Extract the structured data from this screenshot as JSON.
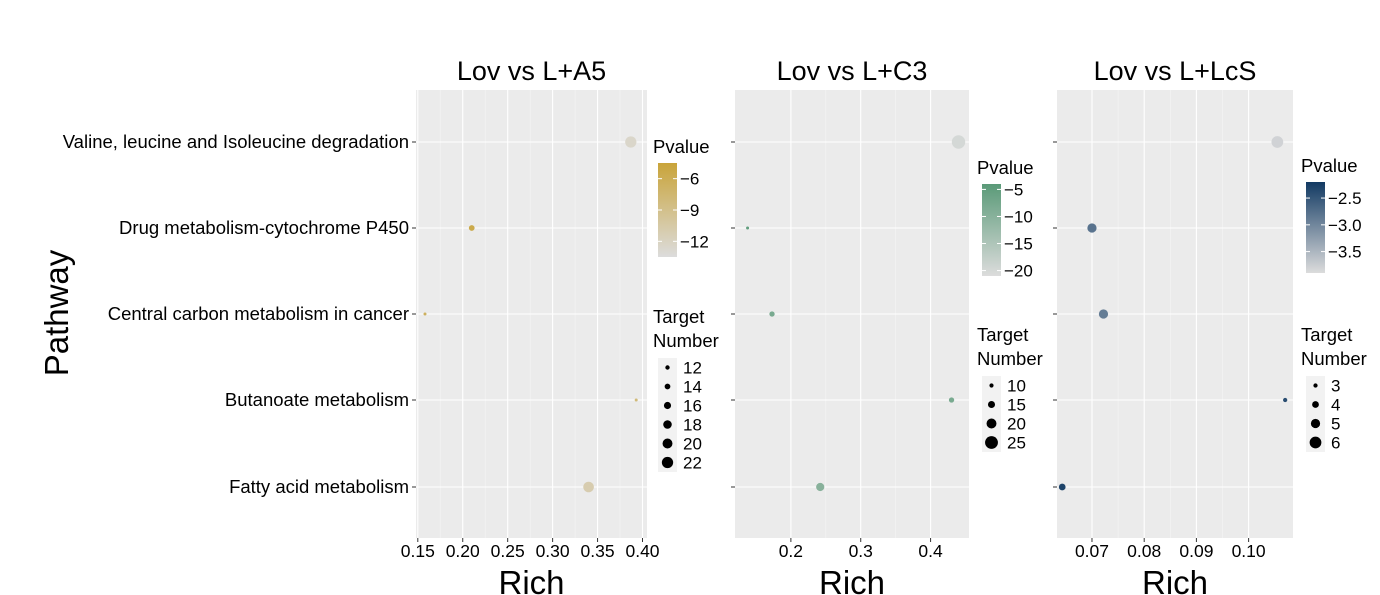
{
  "chart_data": {
    "type": "scatter",
    "ylabel": "Pathway",
    "categories": [
      "Valine, leucine and Isoleucine degradation",
      "Drug metabolism-cytochrome P450",
      "Central carbon metabolism in cancer",
      "Butanoate metabolism",
      "Fatty acid metabolism"
    ],
    "panels": [
      {
        "title": "Lov vs L+A5",
        "xlabel": "Rich",
        "xlim": [
          0.148,
          0.405
        ],
        "xticks": [
          0.15,
          0.2,
          0.25,
          0.3,
          0.35,
          0.4
        ],
        "xtick_labels": [
          "0.15",
          "0.20",
          "0.25",
          "0.30",
          "0.35",
          "0.40"
        ],
        "points": [
          {
            "pathway": "Valine, leucine and Isoleucine degradation",
            "rich": 0.387,
            "target": 22,
            "pvalue": -12.5
          },
          {
            "pathway": "Drug metabolism-cytochrome P450",
            "rich": 0.21,
            "target": 14,
            "pvalue": -5.5
          },
          {
            "pathway": "Central carbon metabolism in cancer",
            "rich": 0.158,
            "target": 10,
            "pvalue": -6.5
          },
          {
            "pathway": "Butanoate metabolism",
            "rich": 0.393,
            "target": 10,
            "pvalue": -8
          },
          {
            "pathway": "Fatty acid metabolism",
            "rich": 0.34,
            "target": 21,
            "pvalue": -11
          }
        ],
        "color_legend": {
          "title": "Pvalue",
          "range": [
            -13.5,
            -4.5
          ],
          "ticks": [
            -6,
            -9,
            -12
          ],
          "tick_labels": [
            "−6",
            "−9",
            "−12"
          ],
          "low_color": "#dcdcdc",
          "high_color": "#c9a43a"
        },
        "size_legend": {
          "title_line1": "Target",
          "title_line2": "Number",
          "values": [
            12,
            14,
            16,
            18,
            20,
            22
          ],
          "labels": [
            "12",
            "14",
            "16",
            "18",
            "20",
            "22"
          ],
          "domain": [
            10,
            23
          ],
          "range": [
            1.5,
            6
          ]
        }
      },
      {
        "title": "Lov vs L+C3",
        "xlabel": "Rich",
        "xlim": [
          0.12,
          0.455
        ],
        "xticks": [
          0.2,
          0.3,
          0.4
        ],
        "xtick_labels": [
          "0.2",
          "0.3",
          "0.4"
        ],
        "points": [
          {
            "pathway": "Valine, leucine and Isoleucine degradation",
            "rich": 0.44,
            "target": 26,
            "pvalue": -20
          },
          {
            "pathway": "Drug metabolism-cytochrome P450",
            "rich": 0.138,
            "target": 8,
            "pvalue": -5
          },
          {
            "pathway": "Central carbon metabolism in cancer",
            "rich": 0.173,
            "target": 12,
            "pvalue": -8
          },
          {
            "pathway": "Butanoate metabolism",
            "rich": 0.43,
            "target": 12,
            "pvalue": -8
          },
          {
            "pathway": "Fatty acid metabolism",
            "rich": 0.242,
            "target": 17,
            "pvalue": -10
          }
        ],
        "color_legend": {
          "title": "Pvalue",
          "range": [
            -21,
            -4
          ],
          "ticks": [
            -5,
            -10,
            -15,
            -20
          ],
          "tick_labels": [
            "−5",
            "−10",
            "−15",
            "−20"
          ],
          "low_color": "#dcdcdc",
          "high_color": "#5a9a78"
        },
        "size_legend": {
          "title_line1": "Target",
          "title_line2": "Number",
          "values": [
            10,
            15,
            20,
            25
          ],
          "labels": [
            "10",
            "15",
            "20",
            "25"
          ],
          "domain": [
            8,
            27
          ],
          "range": [
            1.5,
            7
          ]
        }
      },
      {
        "title": "Lov vs L+LcS",
        "xlabel": "Rich",
        "xlim": [
          0.0633,
          0.1085
        ],
        "xticks": [
          0.07,
          0.08,
          0.09,
          0.1
        ],
        "xtick_labels": [
          "0.07",
          "0.08",
          "0.09",
          "0.10"
        ],
        "points": [
          {
            "pathway": "Valine, leucine and Isoleucine degradation",
            "rich": 0.1055,
            "target": 6,
            "pvalue": -3.8
          },
          {
            "pathway": "Drug metabolism-cytochrome P450",
            "rich": 0.07,
            "target": 5,
            "pvalue": -2.8
          },
          {
            "pathway": "Central carbon metabolism in cancer",
            "rich": 0.0722,
            "target": 5,
            "pvalue": -2.9
          },
          {
            "pathway": "Butanoate metabolism",
            "rich": 0.107,
            "target": 3,
            "pvalue": -2.4
          },
          {
            "pathway": "Fatty acid metabolism",
            "rich": 0.0643,
            "target": 4,
            "pvalue": -2.3
          }
        ],
        "color_legend": {
          "title": "Pvalue",
          "range": [
            -3.9,
            -2.2
          ],
          "ticks": [
            -2.5,
            -3.0,
            -3.5
          ],
          "tick_labels": [
            "−2.5",
            "−3.0",
            "−3.5"
          ],
          "low_color": "#dcdcdc",
          "high_color": "#123a63"
        },
        "size_legend": {
          "title_line1": "Target",
          "title_line2": "Number",
          "values": [
            3,
            4,
            5,
            6
          ],
          "labels": [
            "3",
            "4",
            "5",
            "6"
          ],
          "domain": [
            2.5,
            6.5
          ],
          "range": [
            1.5,
            6.5
          ]
        }
      }
    ]
  }
}
